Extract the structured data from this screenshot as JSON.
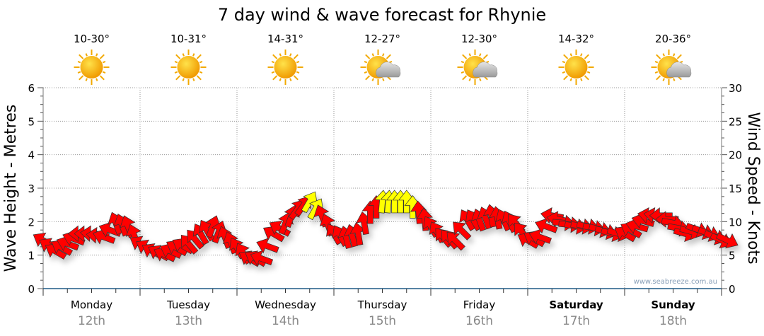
{
  "chart_data": {
    "type": "scatter",
    "title": "7 day wind & wave forecast for Rhynie",
    "ylabel_left": "Wave Height - Metres",
    "ylabel_right": "Wind Speed - Knots",
    "ylim_left": [
      0,
      6
    ],
    "ylim_right": [
      0,
      30
    ],
    "yticks_left": [
      "0",
      "1",
      "2",
      "3",
      "4",
      "5",
      "6"
    ],
    "yticks_right": [
      "0",
      "5",
      "10",
      "15",
      "20",
      "25",
      "30"
    ],
    "grid": true,
    "watermark": "www.seabreeze.com.au",
    "days": [
      {
        "day": "Monday",
        "date": "12th",
        "temp": "10-30°",
        "icon": "sun-icon",
        "bold": false
      },
      {
        "day": "Tuesday",
        "date": "13th",
        "temp": "10-31°",
        "icon": "sun-icon",
        "bold": false
      },
      {
        "day": "Wednesday",
        "date": "14th",
        "temp": "14-31°",
        "icon": "sun-icon",
        "bold": false
      },
      {
        "day": "Thursday",
        "date": "15th",
        "temp": "12-27°",
        "icon": "partly-cloudy-icon",
        "bold": false
      },
      {
        "day": "Friday",
        "date": "16th",
        "temp": "12-30°",
        "icon": "partly-cloudy-icon",
        "bold": false
      },
      {
        "day": "Saturday",
        "date": "17th",
        "temp": "14-32°",
        "icon": "sun-icon",
        "bold": true
      },
      {
        "day": "Sunday",
        "date": "18th",
        "temp": "20-36°",
        "icon": "partly-cloudy-icon",
        "bold": true
      }
    ],
    "wind_unit": "knots",
    "wind_interval_hours": 3,
    "wind_speed": [
      7.2,
      5.6,
      6.7,
      8.2,
      8.2,
      7.7,
      9.8,
      9.3,
      6.7,
      5.6,
      5.1,
      6.1,
      6.7,
      8.2,
      9.3,
      7.7,
      6.1,
      4.5,
      4.5,
      8.2,
      9.8,
      11.9,
      13,
      10.9,
      8.2,
      7.7,
      8.2,
      11.4,
      13,
      13,
      13,
      11.4,
      9.3,
      7.7,
      7.2,
      10.3,
      10.3,
      10.9,
      10.3,
      9.8,
      7.2,
      7.7,
      10.9,
      9.8,
      9.3,
      9.3,
      8.8,
      8.2,
      8.2,
      9.3,
      10.9,
      10.9,
      9.8,
      8.2,
      8.8,
      8.2,
      7.2
    ],
    "wind_arrow_bearing_deg": [
      300,
      300,
      290,
      270,
      275,
      290,
      340,
      340,
      300,
      300,
      295,
      300,
      320,
      330,
      20,
      340,
      330,
      300,
      290,
      300,
      20,
      35,
      30,
      340,
      330,
      345,
      350,
      0,
      5,
      0,
      0,
      355,
      330,
      320,
      315,
      330,
      340,
      350,
      335,
      320,
      300,
      290,
      280,
      95,
      100,
      100,
      105,
      105,
      300,
      285,
      280,
      270,
      100,
      105,
      110,
      110,
      115
    ],
    "strong_wind_threshold": 12,
    "colors": {
      "normal": "#ff0000",
      "strong": "#ffff00",
      "axis": "#1f5a85"
    }
  }
}
